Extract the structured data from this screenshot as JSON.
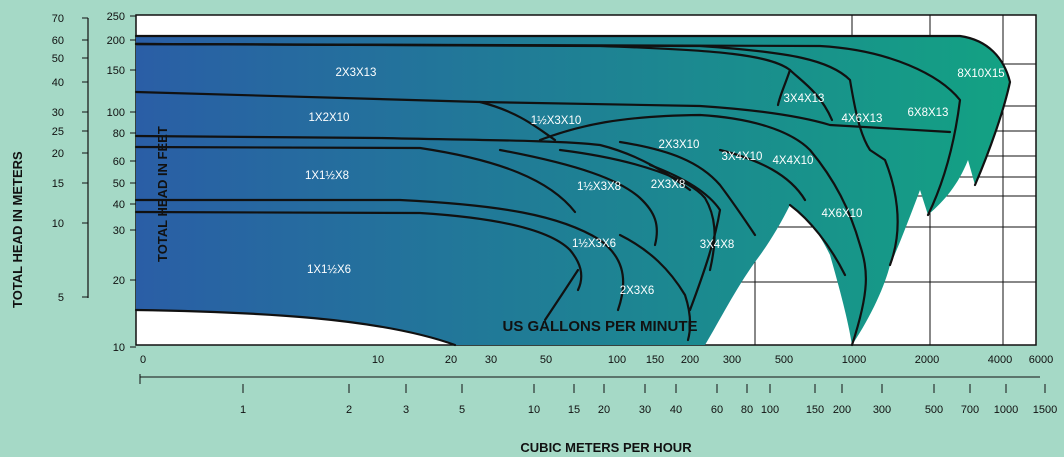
{
  "colors": {
    "page_background": "#a5d9c6",
    "plot_background": "#ffffff",
    "gradient_start": "#2a5ea6",
    "gradient_end": "#13a283",
    "curve_color": "#111111",
    "label_color": "#ffffff"
  },
  "chart_data": {
    "type": "area",
    "title": "",
    "x_axis_gpm": {
      "label": "US GALLONS PER MINUTE",
      "scale": "log",
      "range": [
        0,
        6000
      ],
      "ticks": [
        0,
        10,
        20,
        30,
        50,
        100,
        150,
        200,
        300,
        500,
        1000,
        2000,
        4000,
        6000
      ],
      "tick_labels": [
        "0",
        "10",
        "20",
        "30",
        "50",
        "100",
        "150",
        "200",
        "300",
        "500",
        "1000",
        "2000",
        "4000",
        "6000"
      ]
    },
    "x_axis_m3h": {
      "label": "CUBIC METERS PER HOUR",
      "scale": "log",
      "tick_labels": [
        "1",
        "2",
        "3",
        "5",
        "10",
        "15",
        "20",
        "30",
        "40",
        "60",
        "80",
        "100",
        "150",
        "200",
        "300",
        "500",
        "700",
        "1000",
        "1500"
      ]
    },
    "y_axis_feet": {
      "label": "TOTAL HEAD IN FEET",
      "scale": "log",
      "range": [
        10,
        250
      ],
      "tick_labels": [
        "250",
        "200",
        "150",
        "100",
        "80",
        "60",
        "50",
        "40",
        "30",
        "20",
        "10"
      ]
    },
    "y_axis_meters": {
      "label": "TOTAL HEAD IN METERS",
      "scale": "log",
      "tick_labels": [
        "70",
        "60",
        "50",
        "40",
        "30",
        "25",
        "20",
        "15",
        "10",
        "5"
      ]
    },
    "pump_labels": [
      {
        "text": "2X3X13"
      },
      {
        "text": "1X2X10"
      },
      {
        "text": "1X1½X8"
      },
      {
        "text": "1X1½X6"
      },
      {
        "text": "1½X3X10"
      },
      {
        "text": "1½X3X8"
      },
      {
        "text": "1½X3X6"
      },
      {
        "text": "2X3X10"
      },
      {
        "text": "2X3X8"
      },
      {
        "text": "2X3X6"
      },
      {
        "text": "3X4X10"
      },
      {
        "text": "3X4X8"
      },
      {
        "text": "3X4X13"
      },
      {
        "text": "4X4X10"
      },
      {
        "text": "4X6X13"
      },
      {
        "text": "4X6X10"
      },
      {
        "text": "6X8X13"
      },
      {
        "text": "8X10X15"
      }
    ],
    "grid": true,
    "legend": "none"
  }
}
